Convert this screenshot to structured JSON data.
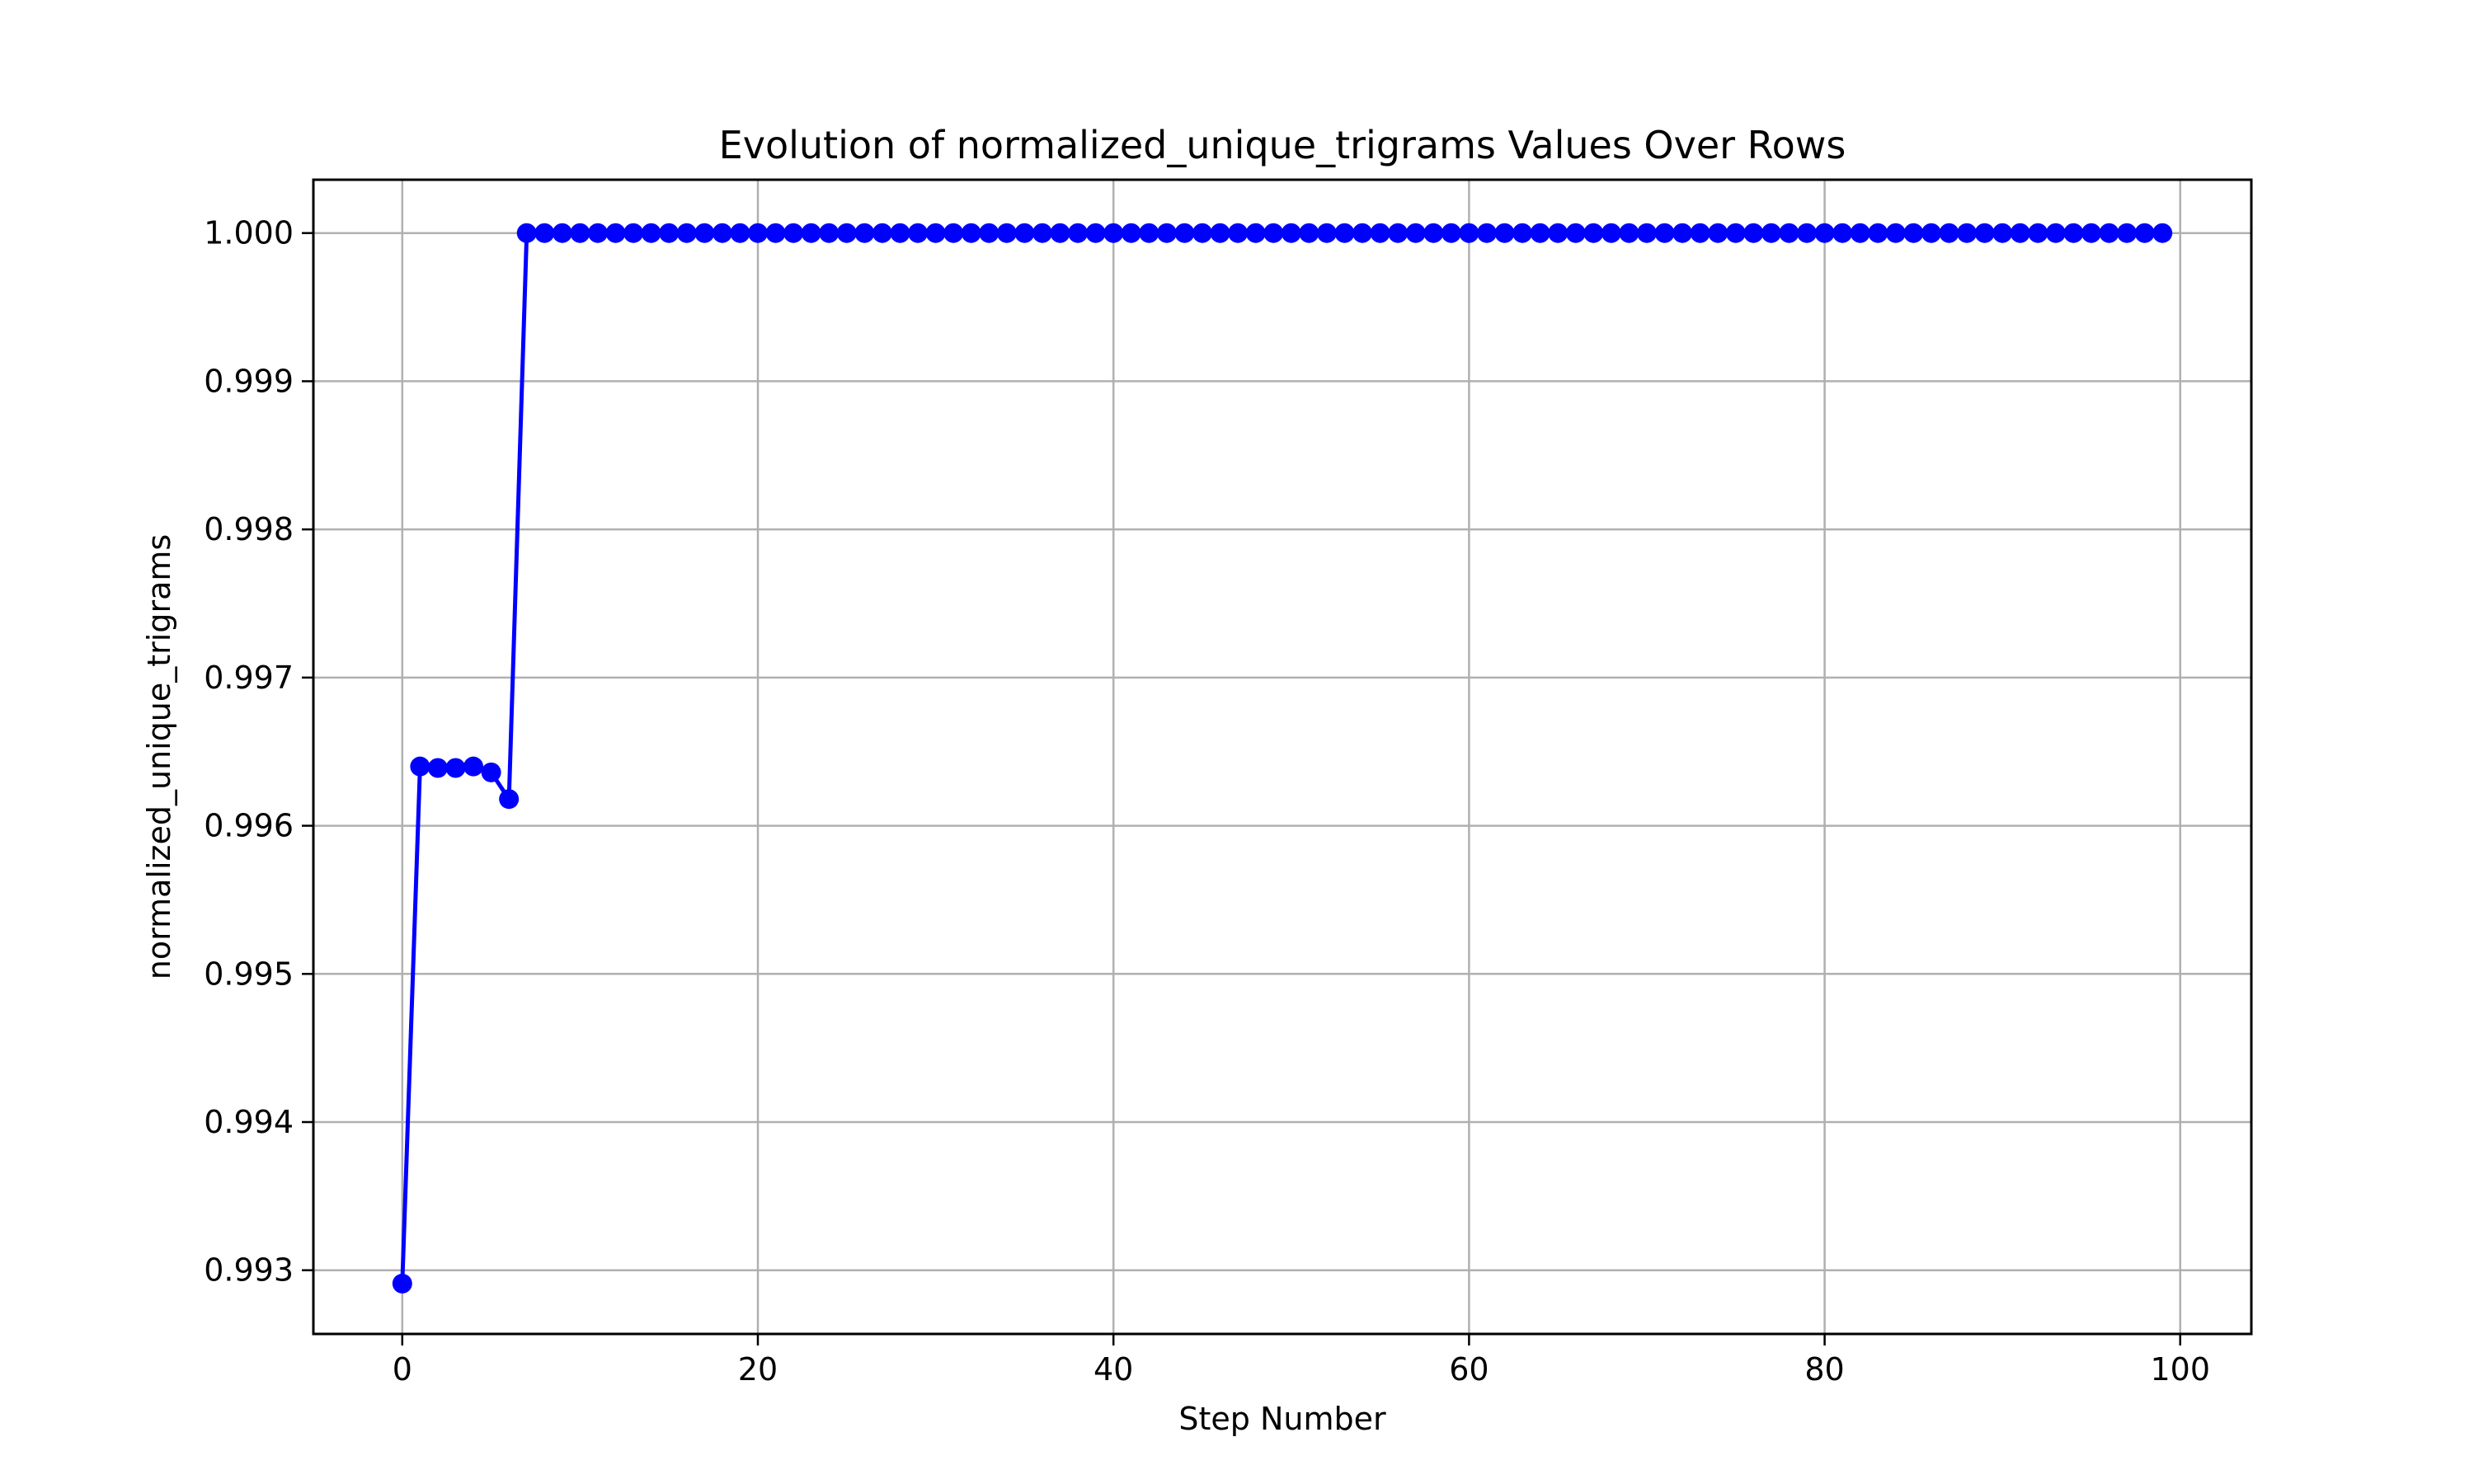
{
  "chart_data": {
    "type": "line",
    "title": "Evolution of normalized_unique_trigrams Values Over Rows",
    "xlabel": "Step Number",
    "ylabel": "normalized_unique_trigrams",
    "xlim": [
      -5,
      104
    ],
    "ylim": [
      0.99257,
      1.00036
    ],
    "xticks": [
      0,
      20,
      40,
      60,
      80,
      100
    ],
    "xtick_labels": [
      "0",
      "20",
      "40",
      "60",
      "80",
      "100"
    ],
    "yticks": [
      0.993,
      0.994,
      0.995,
      0.996,
      0.997,
      0.998,
      0.999,
      1.0
    ],
    "ytick_labels": [
      "0.993",
      "0.994",
      "0.995",
      "0.996",
      "0.997",
      "0.998",
      "0.999",
      "1.000"
    ],
    "grid": true,
    "color": "#0000ff",
    "marker": "circle",
    "series": [
      {
        "x_start": 0,
        "x_step": 1,
        "values": [
          0.99291,
          0.9964,
          0.99639,
          0.99639,
          0.9964,
          0.99636,
          0.99618,
          1.0,
          1.0,
          1.0,
          1.0,
          1.0,
          1.0,
          1.0,
          1.0,
          1.0,
          1.0,
          1.0,
          1.0,
          1.0,
          1.0,
          1.0,
          1.0,
          1.0,
          1.0,
          1.0,
          1.0,
          1.0,
          1.0,
          1.0,
          1.0,
          1.0,
          1.0,
          1.0,
          1.0,
          1.0,
          1.0,
          1.0,
          1.0,
          1.0,
          1.0,
          1.0,
          1.0,
          1.0,
          1.0,
          1.0,
          1.0,
          1.0,
          1.0,
          1.0,
          1.0,
          1.0,
          1.0,
          1.0,
          1.0,
          1.0,
          1.0,
          1.0,
          1.0,
          1.0,
          1.0,
          1.0,
          1.0,
          1.0,
          1.0,
          1.0,
          1.0,
          1.0,
          1.0,
          1.0,
          1.0,
          1.0,
          1.0,
          1.0,
          1.0,
          1.0,
          1.0,
          1.0,
          1.0,
          1.0,
          1.0,
          1.0,
          1.0,
          1.0,
          1.0,
          1.0,
          1.0,
          1.0,
          1.0,
          1.0,
          1.0,
          1.0,
          1.0,
          1.0,
          1.0,
          1.0,
          1.0,
          1.0,
          1.0,
          1.0
        ]
      }
    ]
  }
}
